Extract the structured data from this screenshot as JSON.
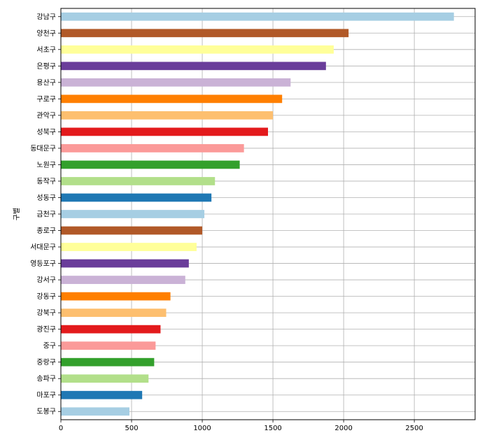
{
  "chart_data": {
    "type": "bar",
    "orientation": "horizontal",
    "title": "",
    "xlabel": "",
    "ylabel": "구별",
    "xlim": [
      0,
      2930
    ],
    "xticks": [
      0,
      500,
      1000,
      1500,
      2000,
      2500
    ],
    "grid": true,
    "legend": "none",
    "categories": [
      "도봉구",
      "마포구",
      "송파구",
      "중랑구",
      "중구",
      "광진구",
      "강북구",
      "강동구",
      "강서구",
      "영등포구",
      "서대문구",
      "종로구",
      "금천구",
      "성동구",
      "동작구",
      "노원구",
      "동대문구",
      "성북구",
      "관악구",
      "구로구",
      "용산구",
      "은평구",
      "서초구",
      "양천구",
      "강남구"
    ],
    "values": [
      485,
      575,
      620,
      660,
      670,
      705,
      745,
      775,
      880,
      905,
      960,
      1000,
      1015,
      1065,
      1090,
      1265,
      1295,
      1465,
      1500,
      1565,
      1625,
      1875,
      1930,
      2035,
      2780
    ],
    "colors": [
      "#a6cee3",
      "#1f78b4",
      "#b2df8a",
      "#33a02c",
      "#fb9a99",
      "#e31a1c",
      "#fdbf6f",
      "#ff7f00",
      "#cab2d6",
      "#6a3d9a",
      "#ffff99",
      "#b15928",
      "#a6cee3",
      "#1f78b4",
      "#b2df8a",
      "#33a02c",
      "#fb9a99",
      "#e31a1c",
      "#fdbf6f",
      "#ff7f00",
      "#cab2d6",
      "#6a3d9a",
      "#ffff99",
      "#b15928",
      "#a6cee3"
    ]
  }
}
